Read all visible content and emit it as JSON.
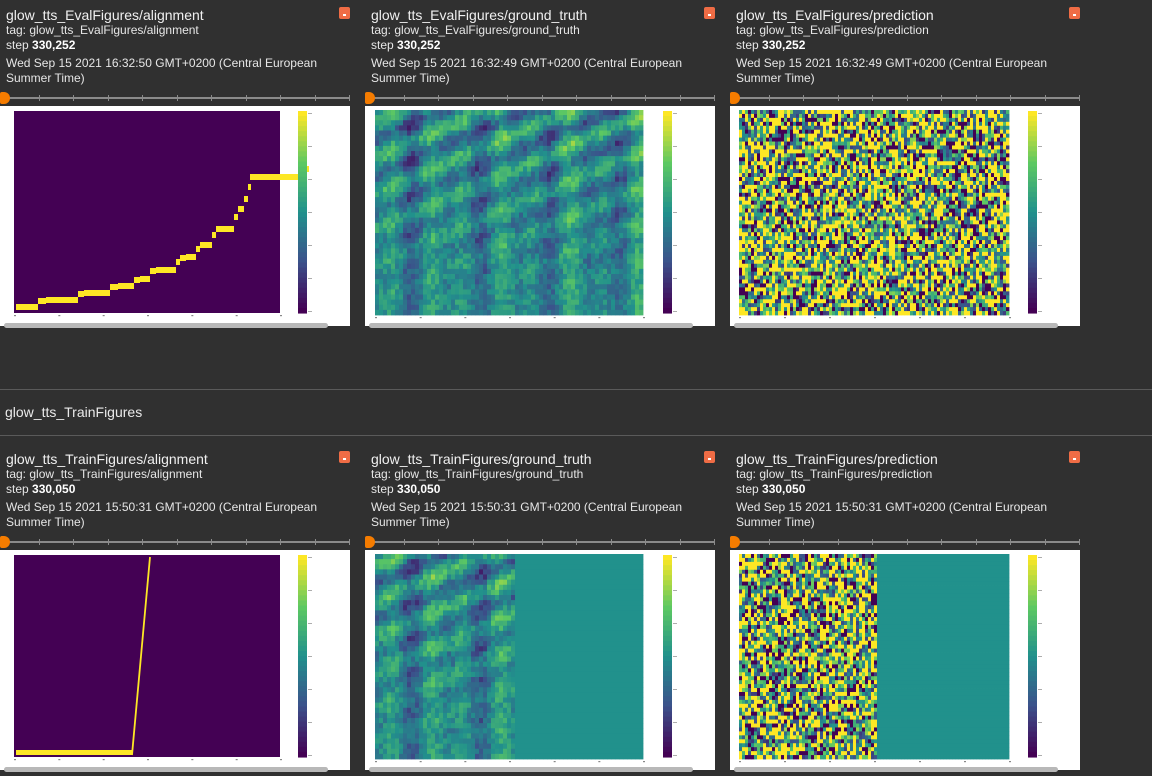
{
  "eval_cards": [
    {
      "title": "glow_tts_EvalFigures/alignment",
      "tag": "tag: glow_tts_EvalFigures/alignment",
      "step_label": "step",
      "step": "330,252",
      "time": "Wed Sep 15 2021 16:32:50 GMT+0200 (Central European",
      "time2": "Summer Time)"
    },
    {
      "title": "glow_tts_EvalFigures/ground_truth",
      "tag": "tag: glow_tts_EvalFigures/ground_truth",
      "step_label": "step",
      "step": "330,252",
      "time": "Wed Sep 15 2021 16:32:49 GMT+0200 (Central European",
      "time2": "Summer Time)"
    },
    {
      "title": "glow_tts_EvalFigures/prediction",
      "tag": "tag: glow_tts_EvalFigures/prediction",
      "step_label": "step",
      "step": "330,252",
      "time": "Wed Sep 15 2021 16:32:49 GMT+0200 (Central European",
      "time2": "Summer Time)"
    }
  ],
  "group_title": "glow_tts_TrainFigures",
  "train_cards": [
    {
      "title": "glow_tts_TrainFigures/alignment",
      "tag": "tag: glow_tts_TrainFigures/alignment",
      "step_label": "step",
      "step": "330,050",
      "time": "Wed Sep 15 2021 15:50:31 GMT+0200 (Central European",
      "time2": "Summer Time)"
    },
    {
      "title": "glow_tts_TrainFigures/ground_truth",
      "tag": "tag: glow_tts_TrainFigures/ground_truth",
      "step_label": "step",
      "step": "330,050",
      "time": "Wed Sep 15 2021 15:50:31 GMT+0200 (Central European",
      "time2": "Summer Time)"
    },
    {
      "title": "glow_tts_TrainFigures/prediction",
      "tag": "tag: glow_tts_TrainFigures/prediction",
      "step_label": "step",
      "step": "330,050",
      "time": "Wed Sep 15 2021 15:50:31 GMT+0200 (Central European",
      "time2": "Summer Time)"
    }
  ],
  "colors": {
    "background": "#303030",
    "pin": "#ef6c45",
    "slider_thumb": "#f57c00",
    "viridis_low": "#440154",
    "viridis_mid": "#21918c",
    "viridis_high": "#fde725"
  },
  "icons": {
    "pin": "pin-icon"
  }
}
